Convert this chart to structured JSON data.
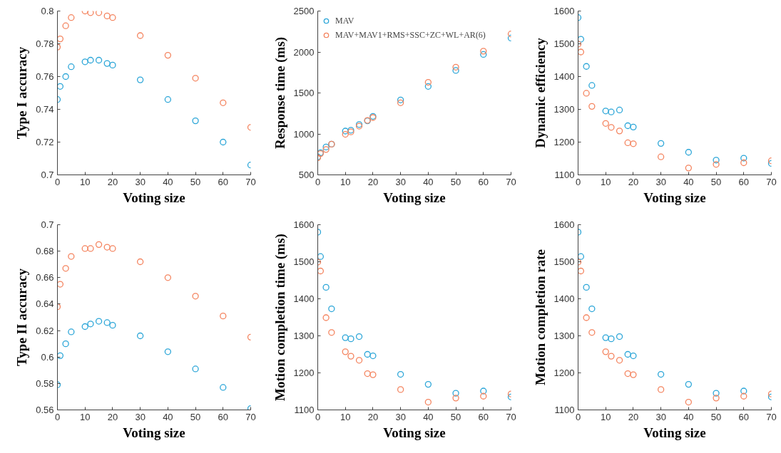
{
  "chart_data": [
    {
      "type": "scatter",
      "xlabel": "Voting size",
      "ylabel": "Type I accuracy",
      "x": [
        0,
        1,
        3,
        5,
        10,
        12,
        15,
        18,
        20,
        30,
        40,
        50,
        60,
        70
      ],
      "xlim": [
        0,
        70
      ],
      "xticks": [
        0,
        10,
        20,
        30,
        40,
        50,
        60,
        70
      ],
      "ylim": [
        0.7,
        0.8
      ],
      "yticks": [
        0.7,
        0.72,
        0.74,
        0.76,
        0.78,
        0.8
      ],
      "marker": "circle",
      "grid": false,
      "legend": false,
      "series": [
        {
          "color": "#2ca6d8",
          "values": [
            0.746,
            0.754,
            0.76,
            0.766,
            0.769,
            0.77,
            0.77,
            0.768,
            0.767,
            0.758,
            0.746,
            0.733,
            0.72,
            0.706
          ]
        },
        {
          "color": "#f4845f",
          "values": [
            0.778,
            0.783,
            0.791,
            0.796,
            0.8,
            0.799,
            0.799,
            0.797,
            0.796,
            0.785,
            0.773,
            0.759,
            0.744,
            0.729
          ]
        }
      ]
    },
    {
      "type": "scatter",
      "xlabel": "Voting size",
      "ylabel": "Response time (ms)",
      "x": [
        0,
        1,
        3,
        5,
        10,
        12,
        15,
        18,
        20,
        30,
        40,
        50,
        60,
        70
      ],
      "xlim": [
        0,
        70
      ],
      "xticks": [
        0,
        10,
        20,
        30,
        40,
        50,
        60,
        70
      ],
      "ylim": [
        500,
        2500
      ],
      "yticks": [
        500,
        1000,
        1500,
        2000,
        2500
      ],
      "marker": "circle",
      "grid": false,
      "legend": "top left",
      "series": [
        {
          "name": "MAV",
          "color": "#2ca6d8",
          "values": [
            720,
            770,
            840,
            875,
            1035,
            1045,
            1115,
            1160,
            1215,
            1415,
            1580,
            1775,
            1970,
            2170
          ]
        },
        {
          "name": "MAV+MAV1+RMS+SSC+ZC+WL+AR(6)",
          "color": "#f4845f",
          "values": [
            710,
            760,
            810,
            875,
            995,
            1025,
            1095,
            1165,
            1200,
            1380,
            1630,
            1815,
            2010,
            2220
          ]
        }
      ]
    },
    {
      "type": "scatter",
      "xlabel": "Voting size",
      "ylabel": "Dynamic efficiency",
      "x": [
        0,
        1,
        3,
        5,
        10,
        12,
        15,
        18,
        20,
        30,
        40,
        50,
        60,
        70
      ],
      "xlim": [
        0,
        70
      ],
      "xticks": [
        0,
        10,
        20,
        30,
        40,
        50,
        60,
        70
      ],
      "ylim": [
        1100,
        1600
      ],
      "yticks": [
        1100,
        1200,
        1300,
        1400,
        1500,
        1600
      ],
      "marker": "circle",
      "grid": false,
      "legend": false,
      "series": [
        {
          "color": "#2ca6d8",
          "values": [
            1580,
            1514,
            1431,
            1373,
            1295,
            1292,
            1298,
            1250,
            1246,
            1196,
            1169,
            1145,
            1151,
            1135
          ]
        },
        {
          "color": "#f4845f",
          "values": [
            1499,
            1475,
            1349,
            1309,
            1257,
            1245,
            1234,
            1198,
            1195,
            1155,
            1121,
            1132,
            1137,
            1143
          ]
        }
      ]
    },
    {
      "type": "scatter",
      "xlabel": "Voting size",
      "ylabel": "Type II accuracy",
      "x": [
        0,
        1,
        3,
        5,
        10,
        12,
        15,
        18,
        20,
        30,
        40,
        50,
        60,
        70
      ],
      "xlim": [
        0,
        70
      ],
      "xticks": [
        0,
        10,
        20,
        30,
        40,
        50,
        60,
        70
      ],
      "ylim": [
        0.56,
        0.7
      ],
      "yticks": [
        0.56,
        0.58,
        0.6,
        0.62,
        0.64,
        0.66,
        0.68,
        0.7
      ],
      "marker": "circle",
      "grid": false,
      "legend": false,
      "series": [
        {
          "color": "#2ca6d8",
          "values": [
            0.579,
            0.601,
            0.61,
            0.619,
            0.623,
            0.625,
            0.627,
            0.626,
            0.624,
            0.616,
            0.604,
            0.591,
            0.577,
            0.561
          ]
        },
        {
          "color": "#f4845f",
          "values": [
            0.638,
            0.655,
            0.667,
            0.676,
            0.682,
            0.682,
            0.685,
            0.683,
            0.682,
            0.672,
            0.66,
            0.646,
            0.631,
            0.615
          ]
        }
      ]
    },
    {
      "type": "scatter",
      "xlabel": "Voting size",
      "ylabel": "Motion completion time (ms)",
      "x": [
        0,
        1,
        3,
        5,
        10,
        12,
        15,
        18,
        20,
        30,
        40,
        50,
        60,
        70
      ],
      "xlim": [
        0,
        70
      ],
      "xticks": [
        0,
        10,
        20,
        30,
        40,
        50,
        60,
        70
      ],
      "ylim": [
        1100,
        1600
      ],
      "yticks": [
        1100,
        1200,
        1300,
        1400,
        1500,
        1600
      ],
      "marker": "circle",
      "grid": false,
      "legend": false,
      "series": [
        {
          "color": "#2ca6d8",
          "values": [
            1580,
            1514,
            1431,
            1373,
            1295,
            1292,
            1298,
            1250,
            1246,
            1196,
            1169,
            1145,
            1151,
            1135
          ]
        },
        {
          "color": "#f4845f",
          "values": [
            1499,
            1475,
            1349,
            1309,
            1257,
            1245,
            1234,
            1198,
            1195,
            1155,
            1121,
            1132,
            1137,
            1143
          ]
        }
      ]
    },
    {
      "type": "scatter",
      "xlabel": "Voting size",
      "ylabel": "Motion completion rate",
      "x": [
        0,
        1,
        3,
        5,
        10,
        12,
        15,
        18,
        20,
        30,
        40,
        50,
        60,
        70
      ],
      "xlim": [
        0,
        70
      ],
      "xticks": [
        0,
        10,
        20,
        30,
        40,
        50,
        60,
        70
      ],
      "ylim": [
        1100,
        1600
      ],
      "yticks": [
        1100,
        1200,
        1300,
        1400,
        1500,
        1600
      ],
      "marker": "circle",
      "grid": false,
      "legend": false,
      "series": [
        {
          "color": "#2ca6d8",
          "values": [
            1580,
            1514,
            1431,
            1373,
            1295,
            1292,
            1298,
            1250,
            1246,
            1196,
            1169,
            1145,
            1151,
            1135
          ]
        },
        {
          "color": "#f4845f",
          "values": [
            1499,
            1475,
            1349,
            1309,
            1257,
            1245,
            1234,
            1198,
            1195,
            1155,
            1121,
            1132,
            1137,
            1143
          ]
        }
      ]
    }
  ]
}
